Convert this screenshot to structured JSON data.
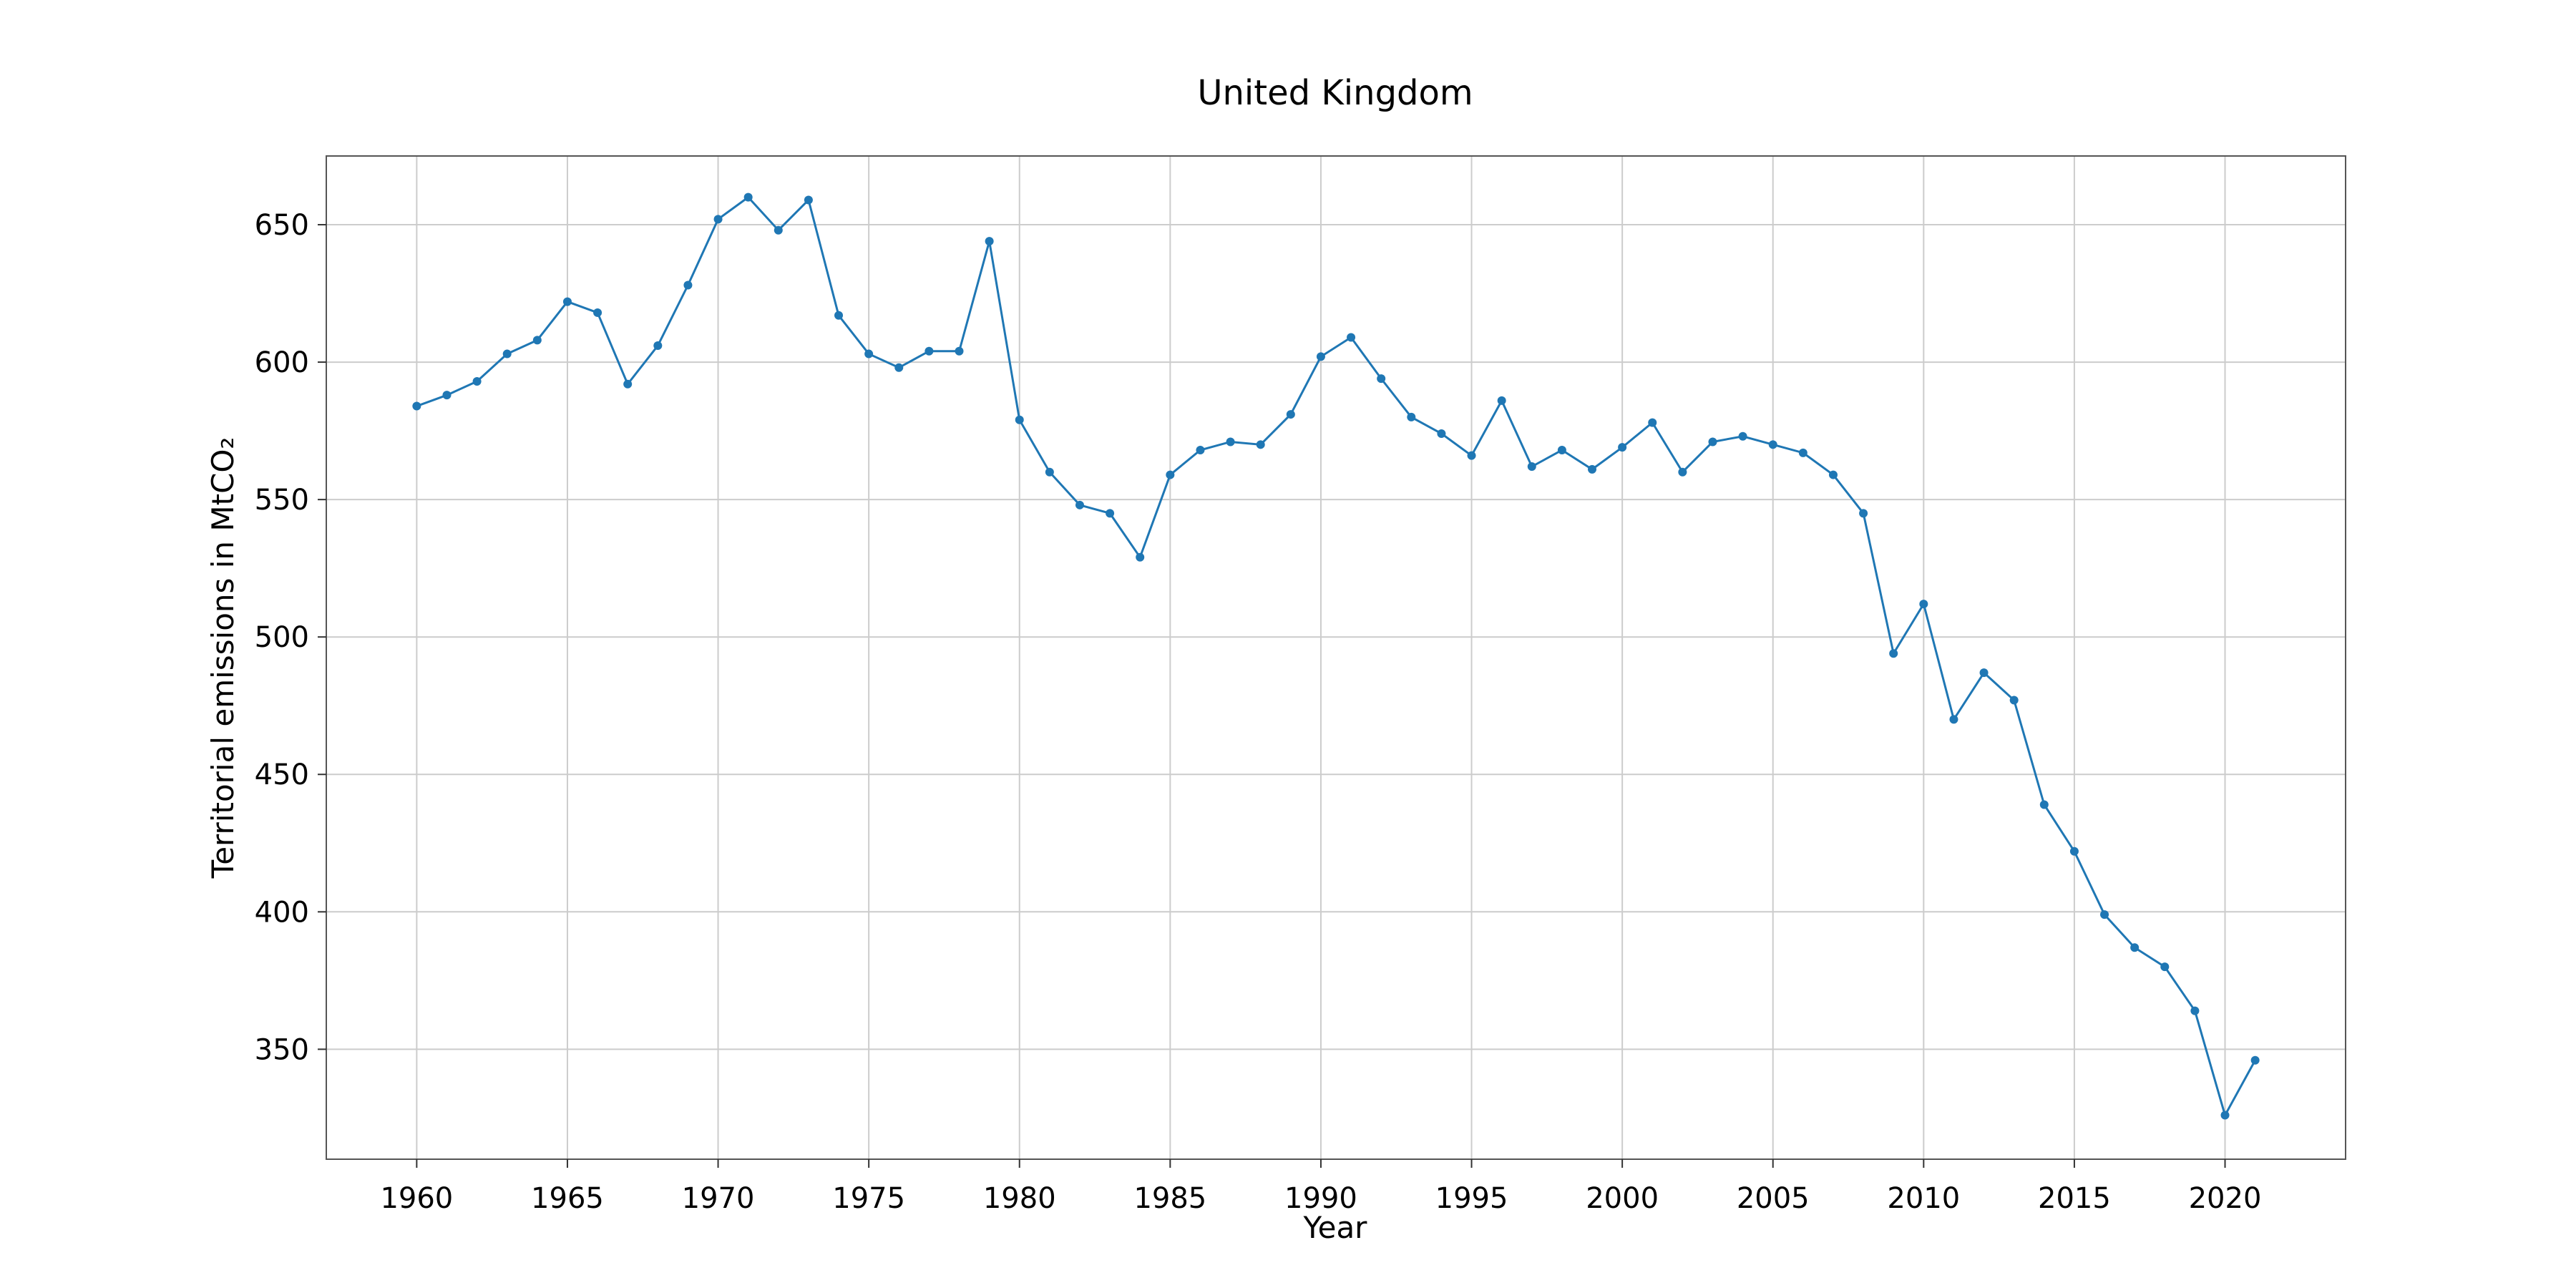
{
  "chart_data": {
    "type": "line",
    "title": "United Kingdom",
    "xlabel": "Year",
    "ylabel": "Territorial emissions in MtCO₂",
    "xlim": [
      1957,
      2024
    ],
    "ylim": [
      310,
      675
    ],
    "xticks": [
      1960,
      1965,
      1970,
      1975,
      1980,
      1985,
      1990,
      1995,
      2000,
      2005,
      2010,
      2015,
      2020
    ],
    "yticks": [
      350,
      400,
      450,
      500,
      550,
      600,
      650
    ],
    "grid": true,
    "color": "#1f77b4",
    "series": [
      {
        "x": [
          1960,
          1961,
          1962,
          1963,
          1964,
          1965,
          1966,
          1967,
          1968,
          1969,
          1970,
          1971,
          1972,
          1973,
          1974,
          1975,
          1976,
          1977,
          1978,
          1979,
          1980,
          1981,
          1982,
          1983,
          1984,
          1985,
          1986,
          1987,
          1988,
          1989,
          1990,
          1991,
          1992,
          1993,
          1994,
          1995,
          1996,
          1997,
          1998,
          1999,
          2000,
          2001,
          2002,
          2003,
          2004,
          2005,
          2006,
          2007,
          2008,
          2009,
          2010,
          2011,
          2012,
          2013,
          2014,
          2015,
          2016,
          2017,
          2018,
          2019,
          2020,
          2021
        ],
        "y": [
          584,
          588,
          593,
          603,
          608,
          622,
          618,
          592,
          606,
          628,
          652,
          660,
          648,
          659,
          617,
          603,
          598,
          604,
          604,
          644,
          579,
          560,
          548,
          545,
          529,
          559,
          568,
          571,
          570,
          581,
          602,
          609,
          594,
          580,
          574,
          566,
          586,
          562,
          568,
          561,
          569,
          578,
          560,
          571,
          573,
          570,
          567,
          559,
          545,
          494,
          512,
          470,
          487,
          477,
          439,
          422,
          399,
          387,
          380,
          364,
          326,
          346
        ]
      }
    ]
  }
}
